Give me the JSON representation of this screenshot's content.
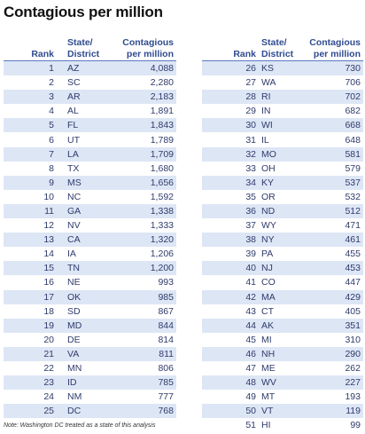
{
  "chart_data": {
    "type": "table",
    "title": "Contagious per million",
    "columns": [
      "Rank",
      "State/ District",
      "Contagious per million"
    ],
    "rows": [
      [
        1,
        "AZ",
        "4,088"
      ],
      [
        2,
        "SC",
        "2,280"
      ],
      [
        3,
        "AR",
        "2,183"
      ],
      [
        4,
        "AL",
        "1,891"
      ],
      [
        5,
        "FL",
        "1,843"
      ],
      [
        6,
        "UT",
        "1,789"
      ],
      [
        7,
        "LA",
        "1,709"
      ],
      [
        8,
        "TX",
        "1,680"
      ],
      [
        9,
        "MS",
        "1,656"
      ],
      [
        10,
        "NC",
        "1,592"
      ],
      [
        11,
        "GA",
        "1,338"
      ],
      [
        12,
        "NV",
        "1,333"
      ],
      [
        13,
        "CA",
        "1,320"
      ],
      [
        14,
        "IA",
        "1,206"
      ],
      [
        15,
        "TN",
        "1,200"
      ],
      [
        16,
        "NE",
        "993"
      ],
      [
        17,
        "OK",
        "985"
      ],
      [
        18,
        "SD",
        "867"
      ],
      [
        19,
        "MD",
        "844"
      ],
      [
        20,
        "DE",
        "814"
      ],
      [
        21,
        "VA",
        "811"
      ],
      [
        22,
        "MN",
        "806"
      ],
      [
        23,
        "ID",
        "785"
      ],
      [
        24,
        "NM",
        "777"
      ],
      [
        25,
        "DC",
        "768"
      ],
      [
        26,
        "KS",
        "730"
      ],
      [
        27,
        "WA",
        "706"
      ],
      [
        28,
        "RI",
        "702"
      ],
      [
        29,
        "IN",
        "682"
      ],
      [
        30,
        "WI",
        "668"
      ],
      [
        31,
        "IL",
        "648"
      ],
      [
        32,
        "MO",
        "581"
      ],
      [
        33,
        "OH",
        "579"
      ],
      [
        34,
        "KY",
        "537"
      ],
      [
        35,
        "OR",
        "532"
      ],
      [
        36,
        "ND",
        "512"
      ],
      [
        37,
        "WY",
        "471"
      ],
      [
        38,
        "NY",
        "461"
      ],
      [
        39,
        "PA",
        "455"
      ],
      [
        40,
        "NJ",
        "453"
      ],
      [
        41,
        "CO",
        "447"
      ],
      [
        42,
        "MA",
        "429"
      ],
      [
        43,
        "CT",
        "405"
      ],
      [
        44,
        "AK",
        "351"
      ],
      [
        45,
        "MI",
        "310"
      ],
      [
        46,
        "NH",
        "290"
      ],
      [
        47,
        "ME",
        "262"
      ],
      [
        48,
        "WV",
        "227"
      ],
      [
        49,
        "MT",
        "193"
      ],
      [
        50,
        "VT",
        "119"
      ],
      [
        51,
        "HI",
        "99"
      ]
    ],
    "note": "Note: Washington DC treated as a state of this analysis"
  },
  "headers": {
    "rank": "Rank",
    "state_line1": "State/",
    "state_line2": "District",
    "value_line1": "Contagious",
    "value_line2": "per million"
  },
  "colors": {
    "stripe": "#dde6f5",
    "header_text": "#2f4b8f",
    "body_text": "#2f3b6b",
    "rule": "#5b7bc0"
  }
}
